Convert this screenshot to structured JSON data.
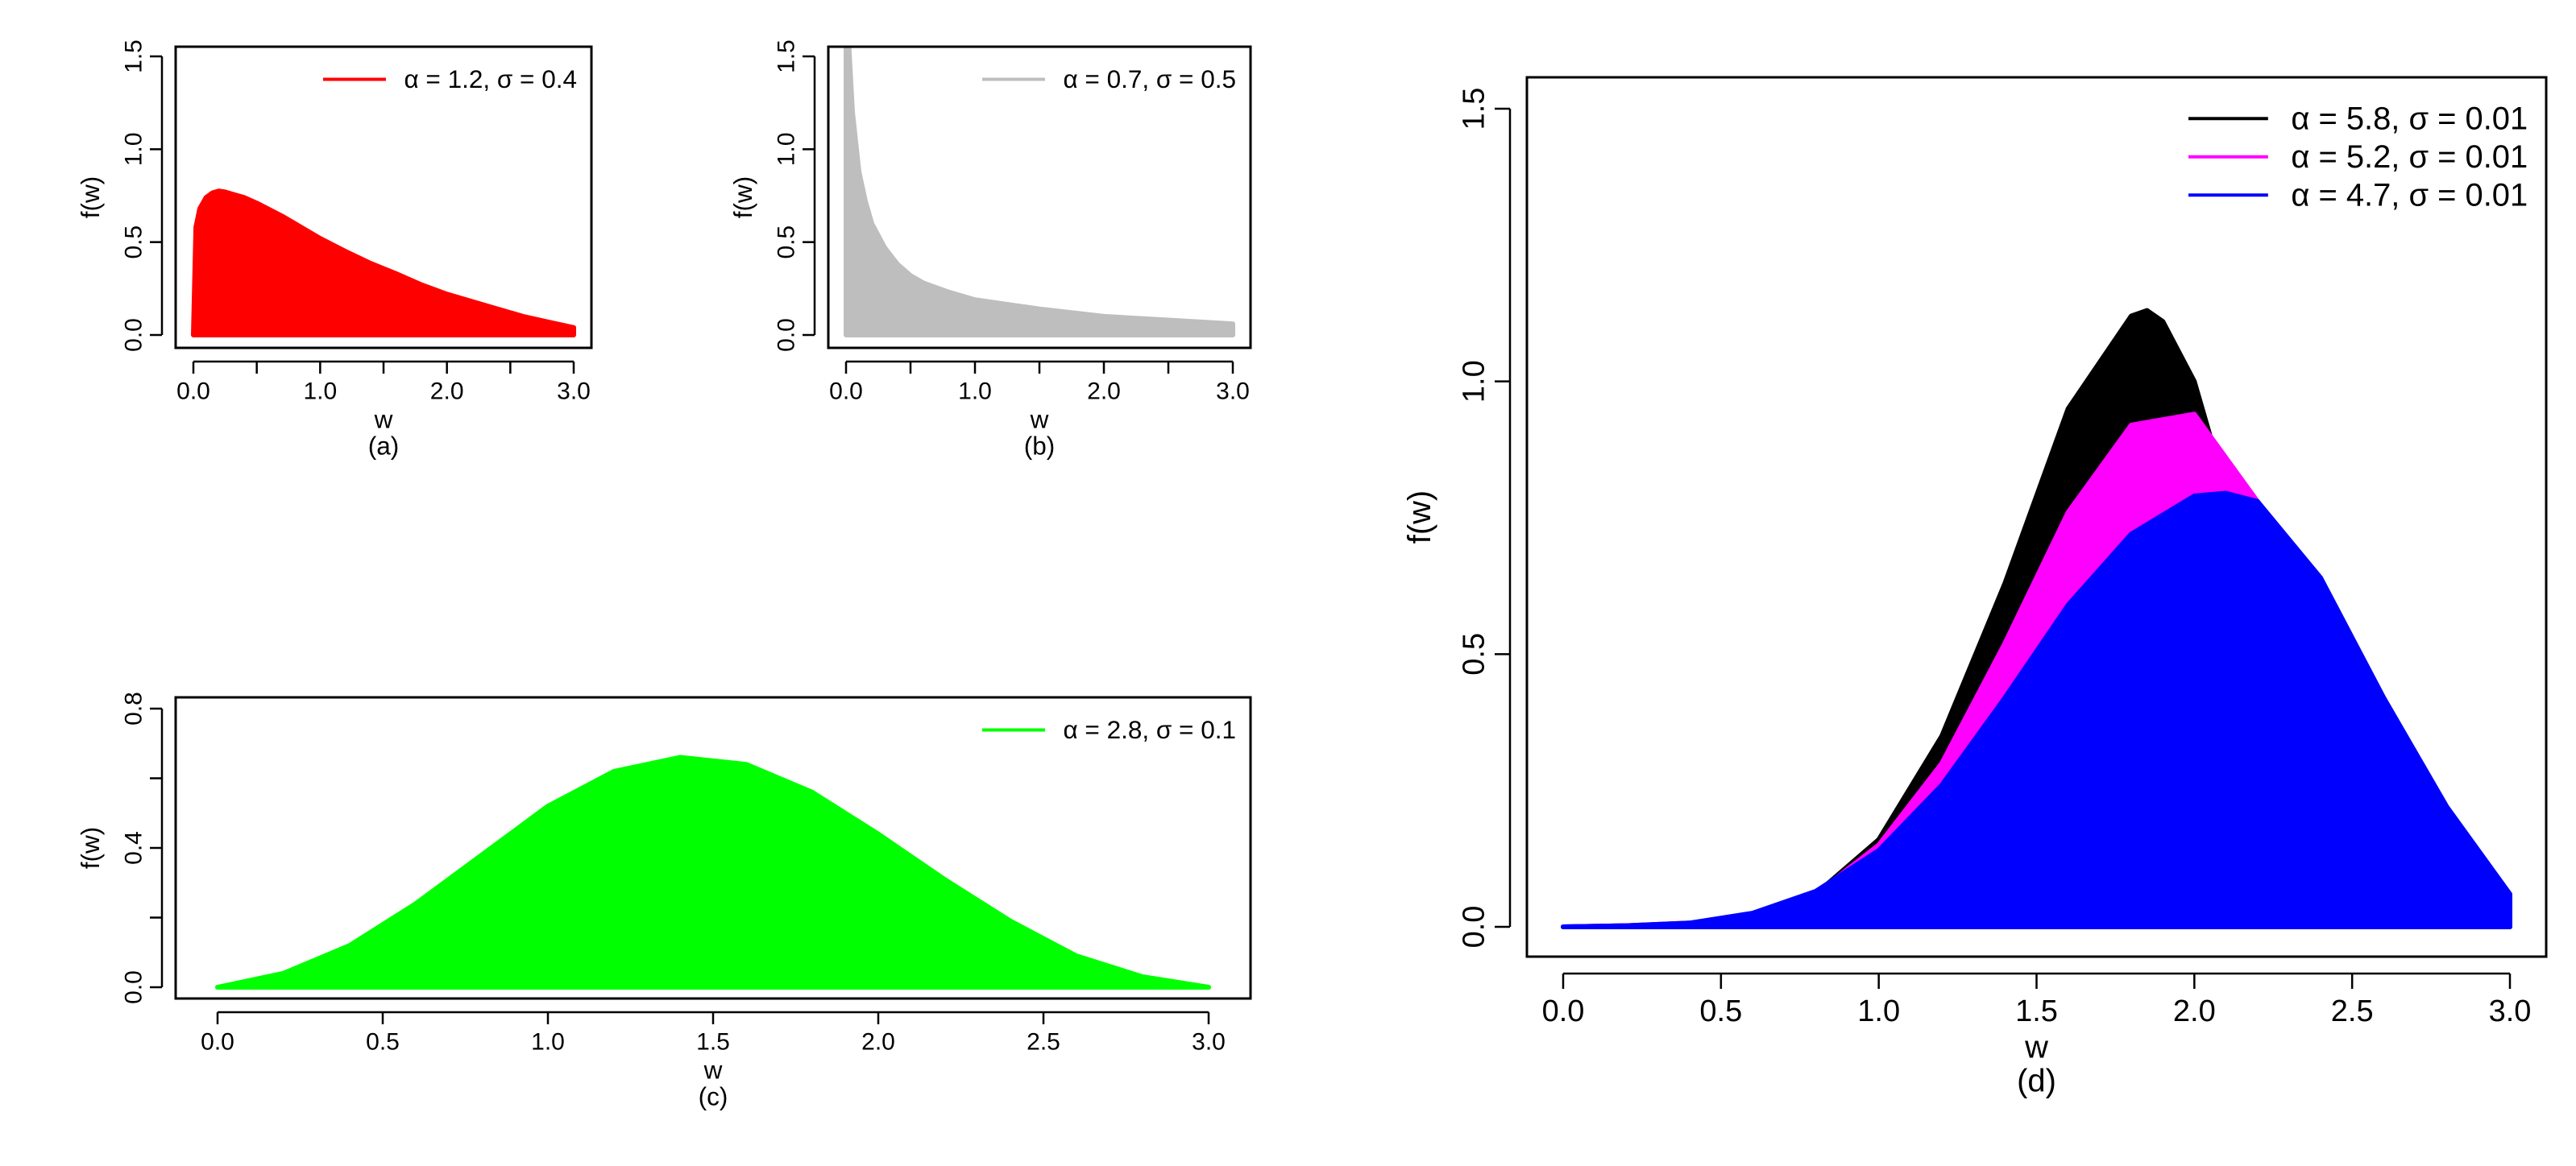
{
  "chart_data": [
    {
      "id": "a",
      "type": "area",
      "caption": "(a)",
      "xlabel": "w",
      "ylabel": "f(w)",
      "xlim": [
        0,
        3
      ],
      "ylim": [
        0,
        1.5
      ],
      "xticks": [
        0,
        1,
        2,
        3
      ],
      "xtick_minor": [
        0.5,
        1.5,
        2.5
      ],
      "xtick_labels": [
        "0.0",
        "1.0",
        "2.0",
        "3.0"
      ],
      "yticks": [
        0,
        0.5,
        1,
        1.5
      ],
      "ytick_labels": [
        "0.0",
        "0.5",
        "1.0",
        "1.5"
      ],
      "legend_position": "top-right",
      "series": [
        {
          "name": "α = 1.2,  σ = 0.4",
          "color": "#ff0000",
          "x": [
            0,
            0.02,
            0.05,
            0.1,
            0.15,
            0.2,
            0.25,
            0.3,
            0.4,
            0.5,
            0.6,
            0.7,
            0.8,
            1.0,
            1.2,
            1.4,
            1.6,
            1.8,
            2.0,
            2.2,
            2.4,
            2.6,
            2.8,
            3.0
          ],
          "y": [
            0.0,
            0.58,
            0.68,
            0.74,
            0.765,
            0.775,
            0.77,
            0.76,
            0.74,
            0.71,
            0.675,
            0.64,
            0.6,
            0.52,
            0.45,
            0.385,
            0.33,
            0.27,
            0.22,
            0.18,
            0.14,
            0.1,
            0.07,
            0.04
          ]
        }
      ]
    },
    {
      "id": "b",
      "type": "area",
      "caption": "(b)",
      "xlabel": "w",
      "ylabel": "f(w)",
      "xlim": [
        0,
        3
      ],
      "ylim": [
        0,
        1.5
      ],
      "xticks": [
        0,
        1,
        2,
        3
      ],
      "xtick_minor": [
        0.5,
        1.5,
        2.5
      ],
      "xtick_labels": [
        "0.0",
        "1.0",
        "2.0",
        "3.0"
      ],
      "yticks": [
        0,
        0.5,
        1,
        1.5
      ],
      "ytick_labels": [
        "0.0",
        "0.5",
        "1.0",
        "1.5"
      ],
      "legend_position": "top-right",
      "series": [
        {
          "name": "α = 0.7,  σ = 0.5",
          "color": "#bebebe",
          "x": [
            0,
            0.02,
            0.05,
            0.1,
            0.15,
            0.2,
            0.3,
            0.4,
            0.5,
            0.6,
            0.8,
            1.0,
            1.2,
            1.5,
            2.0,
            2.5,
            3.0
          ],
          "y": [
            1.58,
            1.58,
            1.2,
            0.88,
            0.72,
            0.6,
            0.47,
            0.38,
            0.32,
            0.28,
            0.23,
            0.19,
            0.17,
            0.14,
            0.1,
            0.08,
            0.06
          ]
        }
      ]
    },
    {
      "id": "c",
      "type": "area",
      "caption": "(c)",
      "xlabel": "w",
      "ylabel": "f(w)",
      "xlim": [
        0,
        3
      ],
      "ylim": [
        0,
        0.8
      ],
      "xticks": [
        0,
        0.5,
        1,
        1.5,
        2,
        2.5,
        3
      ],
      "xtick_minor": [],
      "xtick_labels": [
        "0.0",
        "0.5",
        "1.0",
        "1.5",
        "2.0",
        "2.5",
        "3.0"
      ],
      "yticks": [
        0,
        0.4,
        0.8
      ],
      "ytick_labels": [
        "0.0",
        "0.4",
        "0.8"
      ],
      "yticks_minor": [
        0.2,
        0.6
      ],
      "legend_position": "top-right",
      "series": [
        {
          "name": "α = 2.8,  σ = 0.1",
          "color": "#00ff00",
          "x": [
            0,
            0.2,
            0.4,
            0.6,
            0.8,
            1.0,
            1.2,
            1.4,
            1.6,
            1.8,
            2.0,
            2.2,
            2.4,
            2.6,
            2.8,
            3.0
          ],
          "y": [
            0.0,
            0.04,
            0.12,
            0.24,
            0.38,
            0.52,
            0.62,
            0.66,
            0.64,
            0.56,
            0.44,
            0.31,
            0.19,
            0.09,
            0.03,
            0.0
          ]
        }
      ]
    },
    {
      "id": "d",
      "type": "area",
      "caption": "(d)",
      "xlabel": "w",
      "ylabel": "f(w)",
      "xlim": [
        0,
        3
      ],
      "ylim": [
        0,
        1.5
      ],
      "xticks": [
        0,
        0.5,
        1,
        1.5,
        2,
        2.5,
        3
      ],
      "xtick_minor": [],
      "xtick_labels": [
        "0.0",
        "0.5",
        "1.0",
        "1.5",
        "2.0",
        "2.5",
        "3.0"
      ],
      "yticks": [
        0,
        0.5,
        1,
        1.5
      ],
      "ytick_labels": [
        "0.0",
        "0.5",
        "1.0",
        "1.5"
      ],
      "legend_position": "top-right",
      "series": [
        {
          "name": "α = 5.8,  σ = 0.01",
          "color": "#000000",
          "x": [
            0,
            0.2,
            0.4,
            0.6,
            0.8,
            1.0,
            1.2,
            1.4,
            1.6,
            1.8,
            1.85,
            1.9,
            2.0,
            2.1,
            2.2,
            2.3,
            2.4,
            2.5,
            2.6,
            2.7,
            2.8,
            2.9,
            3.0
          ],
          "y": [
            0.0,
            0.002,
            0.006,
            0.02,
            0.06,
            0.16,
            0.35,
            0.63,
            0.95,
            1.12,
            1.13,
            1.11,
            1.0,
            0.8,
            0.56,
            0.34,
            0.18,
            0.08,
            0.03,
            0.01,
            0.003,
            0.001,
            0.0
          ]
        },
        {
          "name": "α = 5.2,  σ = 0.01",
          "color": "#ff00ff",
          "x": [
            0,
            0.2,
            0.4,
            0.6,
            0.8,
            1.0,
            1.2,
            1.4,
            1.6,
            1.8,
            2.0,
            2.2,
            2.4,
            2.6,
            2.8,
            3.0
          ],
          "y": [
            0.0,
            0.002,
            0.007,
            0.02,
            0.06,
            0.15,
            0.3,
            0.52,
            0.76,
            0.92,
            0.94,
            0.78,
            0.5,
            0.24,
            0.08,
            0.02
          ]
        },
        {
          "name": "α = 4.7,  σ = 0.01",
          "color": "#0000ff",
          "x": [
            0,
            0.2,
            0.4,
            0.6,
            0.8,
            1.0,
            1.2,
            1.4,
            1.6,
            1.8,
            2.0,
            2.1,
            2.2,
            2.4,
            2.6,
            2.8,
            3.0
          ],
          "y": [
            0.0,
            0.002,
            0.007,
            0.025,
            0.065,
            0.14,
            0.26,
            0.42,
            0.59,
            0.72,
            0.79,
            0.795,
            0.78,
            0.64,
            0.42,
            0.22,
            0.06
          ]
        }
      ]
    }
  ]
}
